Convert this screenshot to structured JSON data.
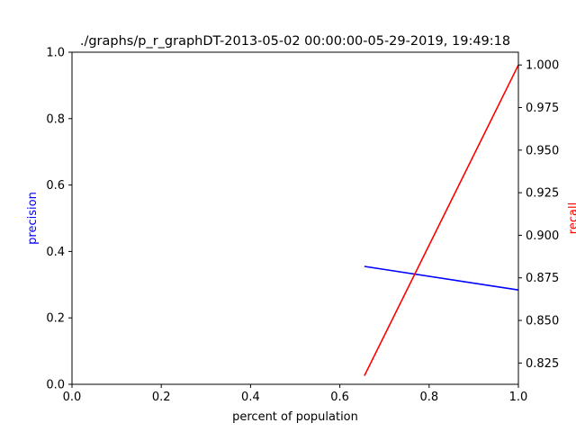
{
  "chart_data": {
    "type": "line",
    "title": "./graphs/p_r_graphDT-2013-05-02 00:00:00-05-29-2019, 19:49:18",
    "xlabel": "percent of population",
    "xlim": [
      0,
      1
    ],
    "xticks": [
      "0.0",
      "0.2",
      "0.4",
      "0.6",
      "0.8",
      "1.0"
    ],
    "grid": false,
    "series": [
      {
        "name": "precision",
        "axis": "left",
        "color": "#0000ff",
        "ylabel": "precision",
        "ylim": [
          0,
          1
        ],
        "yticks": [
          "0.0",
          "0.2",
          "0.4",
          "0.6",
          "0.8",
          "1.0"
        ],
        "x": [
          0.655,
          1.0
        ],
        "values": [
          0.355,
          0.284
        ]
      },
      {
        "name": "recall",
        "axis": "right",
        "color": "#ff0000",
        "ylabel": "recall",
        "ylim": [
          0.8125,
          1.0075
        ],
        "yticks": [
          "0.825",
          "0.850",
          "0.875",
          "0.900",
          "0.925",
          "0.950",
          "0.975",
          "1.000"
        ],
        "x": [
          0.655,
          1.0
        ],
        "values": [
          0.8175,
          1.0
        ]
      }
    ]
  }
}
